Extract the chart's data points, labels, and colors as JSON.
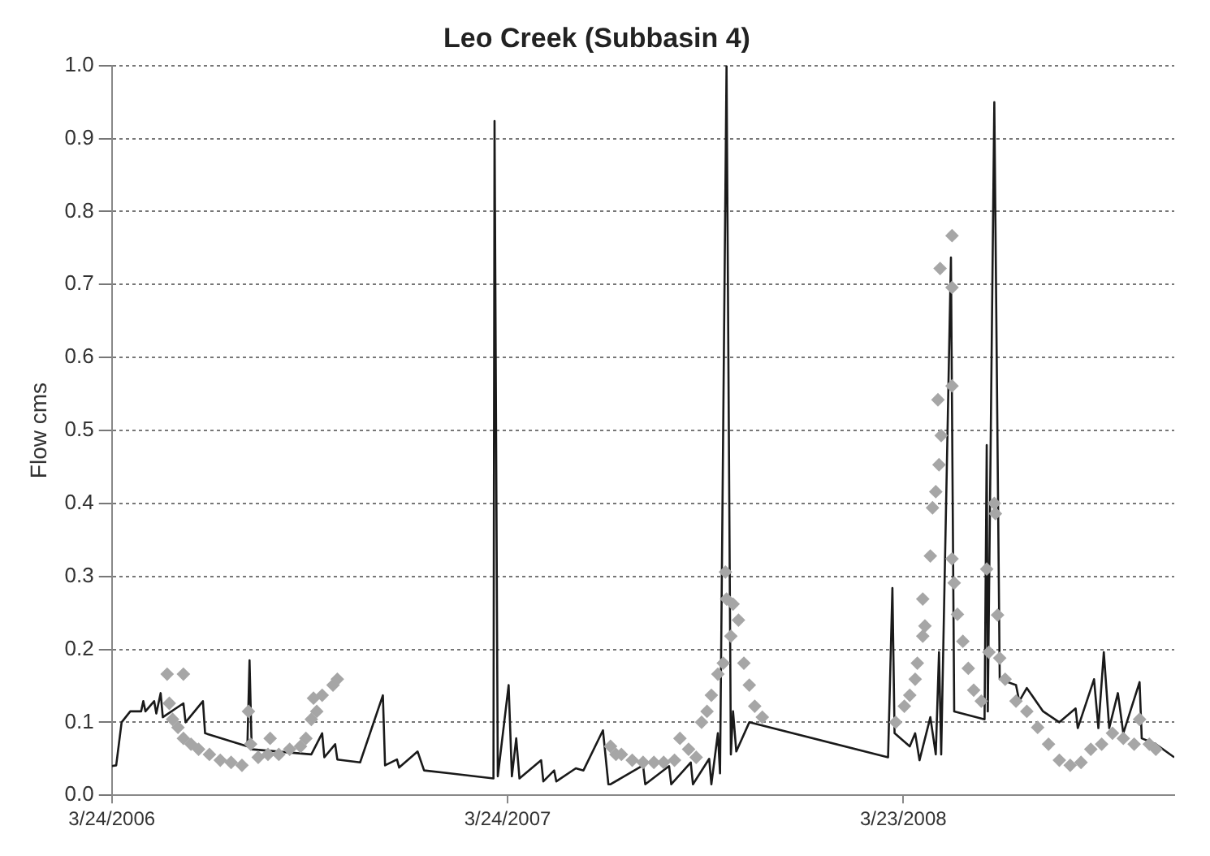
{
  "chart_data": {
    "type": "line",
    "title": "Leo Creek (Subbasin 4)",
    "ylabel": "Flow cms",
    "xlim": [
      "2006-03-24",
      "2008-11-28"
    ],
    "xticks": [
      {
        "value": "2006-03-24",
        "label": "3/24/2006"
      },
      {
        "value": "2007-03-24",
        "label": "3/24/2007"
      },
      {
        "value": "2008-03-23",
        "label": "3/23/2008"
      }
    ],
    "ylim": [
      0,
      1
    ],
    "yticks": [
      {
        "value": 0,
        "label": "0.0"
      },
      {
        "value": 0.1,
        "label": "0.1"
      },
      {
        "value": 0.2,
        "label": "0.2"
      },
      {
        "value": 0.3,
        "label": "0.3"
      },
      {
        "value": 0.4,
        "label": "0.4"
      },
      {
        "value": 0.5,
        "label": "0.5"
      },
      {
        "value": 0.6,
        "label": "0.6"
      },
      {
        "value": 0.7,
        "label": "0.7"
      },
      {
        "value": 0.8,
        "label": "0.8"
      },
      {
        "value": 0.9,
        "label": "0.9"
      },
      {
        "value": 1,
        "label": "1.0"
      }
    ],
    "grid": "y",
    "legend": false,
    "series": [
      {
        "type": "line",
        "color": "#1a1a1a",
        "marker": "none",
        "line_style": "solid",
        "x": [
          "2006-03-24",
          "2006-03-28",
          "2006-04-02",
          "2006-04-10",
          "2006-04-20",
          "2006-04-22",
          "2006-04-24",
          "2006-05-02",
          "2006-05-04",
          "2006-05-08",
          "2006-05-10",
          "2006-05-29",
          "2006-05-31",
          "2006-06-16",
          "2006-06-18",
          "2006-07-27",
          "2006-07-29",
          "2006-07-31",
          "2006-09-24",
          "2006-10-04",
          "2006-10-06",
          "2006-10-16",
          "2006-10-18",
          "2006-11-08",
          "2006-11-29",
          "2006-12-01",
          "2006-12-12",
          "2006-12-14",
          "2006-12-31",
          "2007-01-06",
          "2007-01-30",
          "2007-03-11",
          "2007-03-12",
          "2007-03-15",
          "2007-03-25",
          "2007-03-28",
          "2007-04-01",
          "2007-04-04",
          "2007-04-24",
          "2007-04-26",
          "2007-05-06",
          "2007-05-08",
          "2007-05-26",
          "2007-06-02",
          "2007-06-20",
          "2007-06-25",
          "2007-06-27",
          "2007-07-27",
          "2007-07-29",
          "2007-08-20",
          "2007-08-22",
          "2007-09-09",
          "2007-09-11",
          "2007-09-26",
          "2007-09-28",
          "2007-10-04",
          "2007-10-06",
          "2007-10-12",
          "2007-10-16",
          "2007-10-18",
          "2007-10-21",
          "2007-11-02",
          "2008-03-09",
          "2008-03-13",
          "2008-03-15",
          "2008-03-29",
          "2008-04-03",
          "2008-04-07",
          "2008-04-17",
          "2008-04-22",
          "2008-04-25",
          "2008-04-27",
          "2008-05-06",
          "2008-05-09",
          "2008-06-06",
          "2008-06-08",
          "2008-06-09",
          "2008-06-15",
          "2008-06-20",
          "2008-07-05",
          "2008-07-08",
          "2008-07-15",
          "2008-07-30",
          "2008-08-14",
          "2008-08-29",
          "2008-08-31",
          "2008-09-15",
          "2008-09-19",
          "2008-09-24",
          "2008-09-29",
          "2008-10-07",
          "2008-10-12",
          "2008-10-27",
          "2008-10-29",
          "2008-11-11",
          "2008-11-28"
        ],
        "values": [
          0.04,
          0.041,
          0.1,
          0.115,
          0.115,
          0.129,
          0.115,
          0.129,
          0.112,
          0.14,
          0.107,
          0.126,
          0.1,
          0.129,
          0.085,
          0.067,
          0.185,
          0.063,
          0.056,
          0.085,
          0.052,
          0.07,
          0.049,
          0.045,
          0.137,
          0.041,
          0.049,
          0.038,
          0.06,
          0.034,
          0.03,
          0.023,
          0.924,
          0.026,
          0.151,
          0.026,
          0.078,
          0.023,
          0.048,
          0.019,
          0.034,
          0.019,
          0.037,
          0.034,
          0.089,
          0.015,
          0.015,
          0.041,
          0.015,
          0.04,
          0.015,
          0.045,
          0.015,
          0.05,
          0.015,
          0.085,
          0.03,
          1.0,
          0.056,
          0.115,
          0.06,
          0.1,
          0.052,
          0.284,
          0.085,
          0.067,
          0.085,
          0.048,
          0.107,
          0.056,
          0.196,
          0.056,
          0.737,
          0.115,
          0.104,
          0.48,
          0.115,
          0.95,
          0.159,
          0.151,
          0.129,
          0.147,
          0.115,
          0.1,
          0.119,
          0.092,
          0.159,
          0.092,
          0.196,
          0.092,
          0.14,
          0.085,
          0.155,
          0.078,
          0.07,
          0.052
        ]
      },
      {
        "type": "scatter",
        "color": "#a6a6a6",
        "marker": "diamond",
        "x": [
          "2006-05-14",
          "2006-05-29",
          "2006-05-16",
          "2006-05-19",
          "2006-05-24",
          "2006-05-29",
          "2006-06-05",
          "2006-06-12",
          "2006-06-22",
          "2006-07-02",
          "2006-07-12",
          "2006-07-22",
          "2006-07-28",
          "2006-07-30",
          "2006-08-06",
          "2006-08-15",
          "2006-08-17",
          "2006-08-25",
          "2006-09-04",
          "2006-09-14",
          "2006-09-19",
          "2006-09-24",
          "2006-09-29",
          "2006-09-26",
          "2006-10-04",
          "2006-10-14",
          "2006-10-18",
          "2007-07-02",
          "2007-06-27",
          "2007-07-07",
          "2007-07-17",
          "2007-07-27",
          "2007-08-06",
          "2007-08-15",
          "2007-08-25",
          "2007-08-30",
          "2007-09-07",
          "2007-09-14",
          "2007-09-19",
          "2007-09-24",
          "2007-09-28",
          "2007-10-04",
          "2007-10-09",
          "2007-10-11",
          "2007-10-12",
          "2007-10-16",
          "2007-10-18",
          "2007-10-23",
          "2007-10-28",
          "2007-11-02",
          "2007-11-07",
          "2007-11-14",
          "2008-03-16",
          "2008-03-24",
          "2008-03-29",
          "2008-04-03",
          "2008-04-05",
          "2008-04-10",
          "2008-04-12",
          "2008-04-10",
          "2008-04-17",
          "2008-04-19",
          "2008-04-22",
          "2008-04-25",
          "2008-04-27",
          "2008-04-26",
          "2008-05-07",
          "2008-05-07",
          "2008-05-07",
          "2008-04-24",
          "2008-05-07",
          "2008-05-09",
          "2008-05-12",
          "2008-05-17",
          "2008-05-22",
          "2008-05-27",
          "2008-06-03",
          "2008-06-08",
          "2008-06-10",
          "2008-06-15",
          "2008-06-16",
          "2008-06-18",
          "2008-06-20",
          "2008-06-25",
          "2008-07-05",
          "2008-07-15",
          "2008-07-25",
          "2008-08-04",
          "2008-08-14",
          "2008-08-24",
          "2008-09-03",
          "2008-09-12",
          "2008-09-22",
          "2008-10-02",
          "2008-10-12",
          "2008-10-22",
          "2008-10-27",
          "2008-11-05",
          "2008-11-11"
        ],
        "values": [
          0.166,
          0.166,
          0.126,
          0.104,
          0.093,
          0.078,
          0.07,
          0.063,
          0.056,
          0.048,
          0.045,
          0.041,
          0.115,
          0.07,
          0.052,
          0.056,
          0.078,
          0.056,
          0.063,
          0.067,
          0.078,
          0.104,
          0.115,
          0.133,
          0.137,
          0.151,
          0.159,
          0.056,
          0.067,
          0.056,
          0.048,
          0.045,
          0.045,
          0.045,
          0.048,
          0.078,
          0.063,
          0.052,
          0.1,
          0.115,
          0.137,
          0.166,
          0.181,
          0.306,
          0.269,
          0.218,
          0.262,
          0.24,
          0.181,
          0.151,
          0.122,
          0.107,
          0.1,
          0.122,
          0.137,
          0.159,
          0.181,
          0.218,
          0.232,
          0.269,
          0.328,
          0.394,
          0.416,
          0.453,
          0.493,
          0.722,
          0.767,
          0.696,
          0.561,
          0.542,
          0.324,
          0.291,
          0.248,
          0.211,
          0.174,
          0.144,
          0.129,
          0.31,
          0.196,
          0.4,
          0.386,
          0.247,
          0.188,
          0.159,
          0.129,
          0.115,
          0.093,
          0.07,
          0.048,
          0.041,
          0.045,
          0.063,
          0.07,
          0.085,
          0.078,
          0.07,
          0.104,
          0.07,
          0.063
        ]
      }
    ]
  }
}
